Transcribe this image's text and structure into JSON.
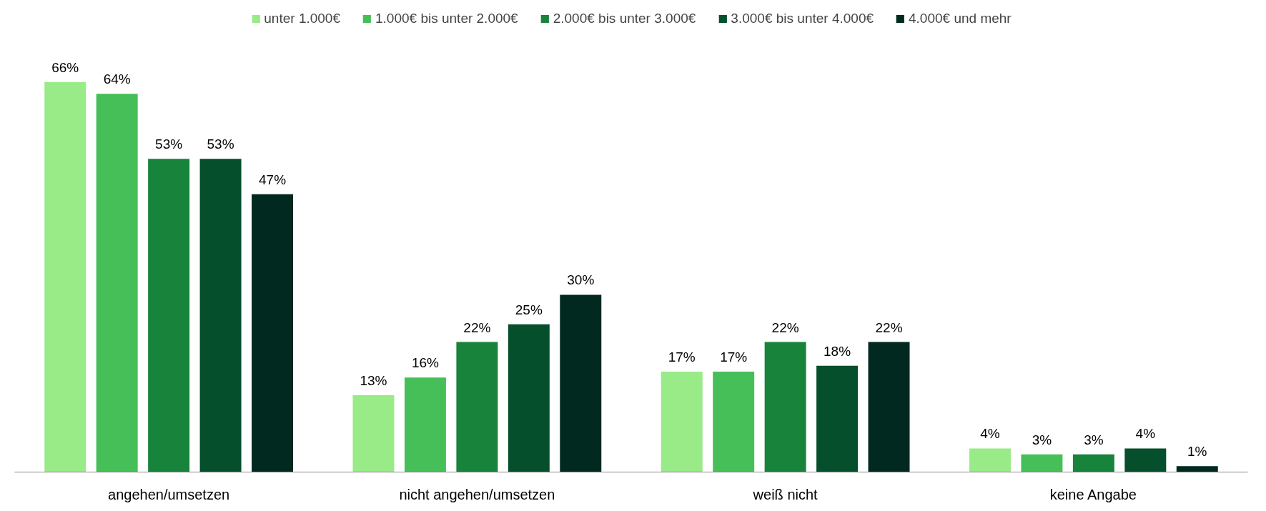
{
  "chart_data": {
    "type": "bar",
    "categories": [
      "angehen/umsetzen",
      "nicht angehen/umsetzen",
      "weiß nicht",
      "keine Angabe"
    ],
    "series": [
      {
        "name": "unter 1.000€",
        "color": "#98eb87",
        "values": [
          66,
          13,
          17,
          4
        ],
        "value_labels": [
          "66%",
          "13%",
          "17%",
          "4%"
        ]
      },
      {
        "name": "1.000€ bis unter 2.000€",
        "color": "#47bf59",
        "values": [
          64,
          16,
          17,
          3
        ],
        "value_labels": [
          "64%",
          "16%",
          "17%",
          "3%"
        ]
      },
      {
        "name": "2.000€ bis unter 3.000€",
        "color": "#18833a",
        "values": [
          53,
          22,
          22,
          3
        ],
        "value_labels": [
          "53%",
          "22%",
          "22%",
          "3%"
        ]
      },
      {
        "name": "3.000€ bis unter 4.000€",
        "color": "#054f2c",
        "values": [
          53,
          25,
          18,
          4
        ],
        "value_labels": [
          "53%",
          "25%",
          "18%",
          "4%"
        ]
      },
      {
        "name": "4.000€ und mehr",
        "color": "#02291f",
        "values": [
          47,
          30,
          22,
          1
        ],
        "value_labels": [
          "47%",
          "30%",
          "22%",
          "1%"
        ]
      }
    ],
    "legend": "top",
    "grid": false,
    "tick_labels": "x"
  }
}
